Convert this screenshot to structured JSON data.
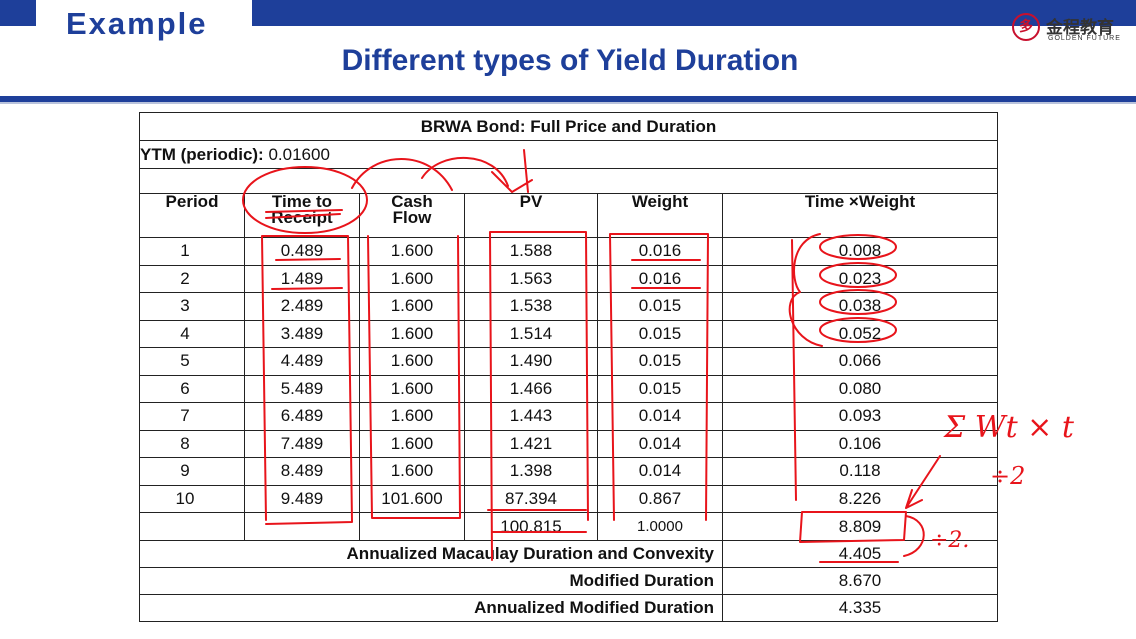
{
  "slide": {
    "section_label": "Example",
    "title": "Different types of Yield Duration",
    "logo": {
      "mark": "多",
      "chinese_name": "金程教育",
      "english_name": "GOLDEN FUTURE"
    },
    "colors": {
      "brand_blue": "#1e3f9a",
      "ink_red": "#e8141b",
      "logo_red": "#c8102e"
    }
  },
  "table": {
    "title": "BRWA Bond: Full Price and Duration",
    "ytm_label": "YTM (periodic):",
    "ytm_value": "0.01600",
    "headers": {
      "period": "Period",
      "time_line1": "Time to",
      "time_line2": "Receipt",
      "cash_line1": "Cash",
      "cash_line2": "Flow",
      "pv": "PV",
      "weight": "Weight",
      "time_weight": "Time ×Weight"
    },
    "rows": [
      {
        "period": "1",
        "time": "0.489",
        "cash": "1.600",
        "pv": "1.588",
        "weight": "0.016",
        "tw": "0.008"
      },
      {
        "period": "2",
        "time": "1.489",
        "cash": "1.600",
        "pv": "1.563",
        "weight": "0.016",
        "tw": "0.023"
      },
      {
        "period": "3",
        "time": "2.489",
        "cash": "1.600",
        "pv": "1.538",
        "weight": "0.015",
        "tw": "0.038"
      },
      {
        "period": "4",
        "time": "3.489",
        "cash": "1.600",
        "pv": "1.514",
        "weight": "0.015",
        "tw": "0.052"
      },
      {
        "period": "5",
        "time": "4.489",
        "cash": "1.600",
        "pv": "1.490",
        "weight": "0.015",
        "tw": "0.066"
      },
      {
        "period": "6",
        "time": "5.489",
        "cash": "1.600",
        "pv": "1.466",
        "weight": "0.015",
        "tw": "0.080"
      },
      {
        "period": "7",
        "time": "6.489",
        "cash": "1.600",
        "pv": "1.443",
        "weight": "0.014",
        "tw": "0.093"
      },
      {
        "period": "8",
        "time": "7.489",
        "cash": "1.600",
        "pv": "1.421",
        "weight": "0.014",
        "tw": "0.106"
      },
      {
        "period": "9",
        "time": "8.489",
        "cash": "1.600",
        "pv": "1.398",
        "weight": "0.014",
        "tw": "0.118"
      },
      {
        "period": "10",
        "time": "9.489",
        "cash": "101.600",
        "pv": "87.394",
        "weight": "0.867",
        "tw": "8.226"
      }
    ],
    "totals": {
      "pv": "100.815",
      "weight": "1.0000",
      "tw": "8.809"
    },
    "summary": [
      {
        "label": "Annualized Macaulay Duration and Convexity",
        "value": "4.405"
      },
      {
        "label": "Modified Duration",
        "value": "8.670"
      },
      {
        "label": "Annualized Modified Duration",
        "value": "4.335"
      }
    ]
  },
  "annotations": {
    "formula": "Σ Wt × t",
    "divide_note_1": "÷2",
    "divide_note_2": "÷2."
  }
}
